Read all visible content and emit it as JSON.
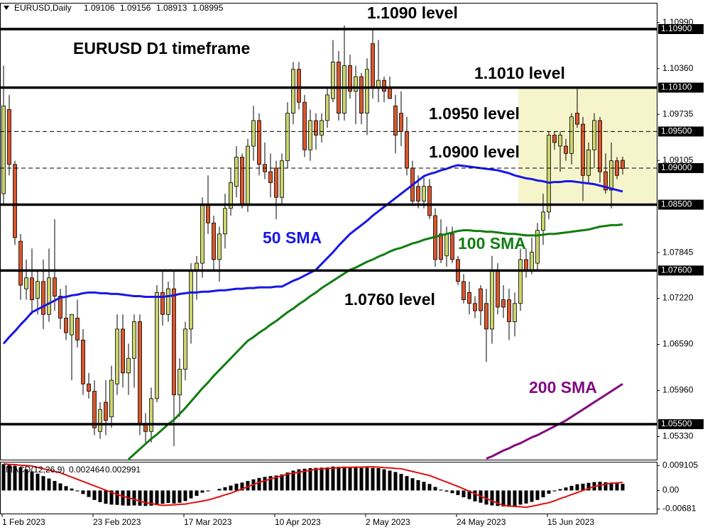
{
  "chart_data": {
    "type": "candlestick",
    "title": "EURUSD,Daily",
    "subtitle": "EURUSD D1 timeframe",
    "categories": [
      "1 Feb 2023",
      null,
      null,
      null,
      null,
      null,
      null,
      null,
      null,
      null,
      null,
      null,
      null,
      null,
      null,
      null,
      "23 Feb 2023",
      null,
      null,
      null,
      null,
      null,
      null,
      null,
      null,
      null,
      null,
      null,
      null,
      null,
      null,
      null,
      "17 Mar 2023",
      null,
      null,
      null,
      null,
      null,
      null,
      null,
      null,
      null,
      null,
      null,
      null,
      null,
      null,
      null,
      "10 Apr 2023",
      null,
      null,
      null,
      null,
      null,
      null,
      null,
      null,
      null,
      null,
      null,
      null,
      null,
      null,
      null,
      "2 May 2023",
      null,
      null,
      null,
      null,
      null,
      null,
      null,
      null,
      null,
      null,
      null,
      null,
      null,
      null,
      null,
      "24 May 2023",
      null,
      null,
      null,
      null,
      null,
      null,
      null,
      null,
      null,
      null,
      null,
      null,
      null,
      null,
      null,
      "15 Jun 2023",
      null,
      null,
      null,
      null,
      null,
      null,
      null,
      null,
      null,
      null,
      null,
      null,
      null
    ],
    "open": [
      1.0865,
      1.098,
      1.0905,
      1.08,
      1.0735,
      1.075,
      1.0722,
      1.0745,
      1.07,
      1.075,
      1.0725,
      1.0695,
      1.0672,
      1.0695,
      1.0665,
      1.0605,
      1.0595,
      1.054,
      1.058,
      1.056,
      1.0605,
      1.068,
      1.062,
      1.064,
      1.069,
      1.055,
      1.054,
      1.0585,
      1.073,
      1.07,
      1.0735,
      1.059,
      1.0625,
      1.068,
      1.076,
      1.077,
      1.085,
      1.0825,
      1.0775,
      1.081,
      1.0845,
      1.0875,
      1.0915,
      1.085,
      1.093,
      1.0965,
      1.0905,
      1.0895,
      1.09,
      1.086,
      1.091,
      1.0975,
      1.1035,
      1.099,
      1.0925,
      1.0965,
      1.0945,
      1.0965,
      1.0995,
      1.1045,
      1.0975,
      1.104,
      1.1005,
      1.1025,
      1.0975,
      1.107,
      1.101,
      1.102,
      1.101,
      1.0985,
      1.0975,
      1.095,
      1.09,
      1.0875,
      1.0855,
      1.0875,
      1.0835,
      1.081,
      1.078,
      1.081,
      1.0775,
      1.0745,
      1.073,
      1.0715,
      1.0735,
      1.0715,
      1.068,
      1.076,
      1.072,
      1.072,
      1.069,
      1.0715,
      1.0775,
      1.076,
      1.077,
      1.0815,
      1.084,
      1.0945,
      1.093,
      1.093,
      1.092,
      1.0975,
      1.096,
      1.089,
      1.0925,
      1.0965,
      1.0895,
      1.087,
      1.091,
      1.09106
    ],
    "high": [
      1.104,
      1.1,
      1.091,
      1.081,
      1.0775,
      1.079,
      1.076,
      1.0775,
      1.079,
      1.083,
      1.0735,
      1.074,
      1.07,
      1.072,
      1.068,
      1.062,
      1.061,
      1.058,
      1.061,
      1.063,
      1.07,
      1.07,
      1.066,
      1.07,
      1.07,
      1.0565,
      1.06,
      1.074,
      1.076,
      1.0745,
      1.076,
      1.064,
      1.069,
      1.077,
      1.078,
      1.086,
      1.089,
      1.0835,
      1.082,
      1.0865,
      1.09,
      1.093,
      1.092,
      1.094,
      1.0985,
      1.0975,
      1.0935,
      1.092,
      1.091,
      1.092,
      1.099,
      1.1045,
      1.1045,
      1.1,
      1.098,
      1.0975,
      1.0975,
      1.101,
      1.1075,
      1.106,
      1.1095,
      1.1055,
      1.104,
      1.103,
      1.105,
      1.109,
      1.1075,
      1.1025,
      1.1025,
      1.1,
      1.1005,
      1.097,
      1.091,
      1.089,
      1.089,
      1.0885,
      1.0845,
      1.083,
      1.082,
      1.082,
      1.078,
      1.0755,
      1.0745,
      1.0725,
      1.074,
      1.0735,
      1.078,
      1.077,
      1.074,
      1.0735,
      1.073,
      1.079,
      1.079,
      1.0805,
      1.0825,
      1.0865,
      1.095,
      1.095,
      1.095,
      1.094,
      1.0975,
      1.101,
      1.097,
      1.0935,
      1.0975,
      1.097,
      1.092,
      1.0935,
      1.0915,
      1.09156
    ],
    "low": [
      1.085,
      1.089,
      1.0795,
      1.072,
      1.072,
      1.07,
      1.07,
      1.068,
      1.069,
      1.0705,
      1.068,
      1.0665,
      1.061,
      1.0655,
      1.059,
      1.0585,
      1.0535,
      1.053,
      1.0535,
      1.0545,
      1.059,
      1.06,
      1.059,
      1.06,
      1.0535,
      1.0525,
      1.0525,
      1.058,
      1.0685,
      1.069,
      1.052,
      1.056,
      1.061,
      1.066,
      1.072,
      1.075,
      1.081,
      1.076,
      1.0745,
      1.079,
      1.0835,
      1.086,
      1.0845,
      1.084,
      1.091,
      1.089,
      1.0885,
      1.086,
      1.083,
      1.085,
      1.09,
      1.096,
      1.098,
      1.0915,
      1.091,
      1.0925,
      1.0935,
      1.0955,
      1.099,
      1.0965,
      1.0965,
      1.0995,
      1.096,
      1.096,
      1.0945,
      1.0995,
      1.099,
      1.099,
      1.0995,
      1.092,
      1.093,
      1.089,
      1.085,
      1.0845,
      1.0845,
      1.083,
      1.0765,
      1.077,
      1.0765,
      1.077,
      1.074,
      1.0715,
      1.07,
      1.0695,
      1.0685,
      1.0635,
      1.066,
      1.07,
      1.0695,
      1.0665,
      1.067,
      1.0705,
      1.075,
      1.0755,
      1.076,
      1.0795,
      1.083,
      1.0925,
      1.0895,
      1.091,
      1.0905,
      1.0955,
      1.0855,
      1.088,
      1.09,
      1.088,
      1.0865,
      1.0845,
      1.0885,
      1.08913
    ],
    "close": [
      1.0985,
      1.0905,
      1.0805,
      1.074,
      1.075,
      1.072,
      1.0745,
      1.07,
      1.075,
      1.0725,
      1.0695,
      1.0675,
      1.07,
      1.0665,
      1.0605,
      1.0595,
      1.0545,
      1.057,
      1.0555,
      1.061,
      1.068,
      1.062,
      1.064,
      1.069,
      1.055,
      1.054,
      1.0585,
      1.073,
      1.07,
      1.0735,
      1.059,
      1.0625,
      1.068,
      1.076,
      1.077,
      1.085,
      1.0825,
      1.0775,
      1.081,
      1.0845,
      1.088,
      1.0915,
      1.085,
      1.093,
      1.0965,
      1.0905,
      1.0895,
      1.088,
      1.086,
      1.091,
      1.0975,
      1.1035,
      1.099,
      1.0925,
      1.0965,
      1.0945,
      1.0965,
      1.1,
      1.1045,
      1.0975,
      1.104,
      1.1005,
      1.1025,
      1.0975,
      1.1035,
      1.101,
      1.102,
      1.1005,
      1.0995,
      1.0945,
      1.095,
      1.09,
      1.0855,
      1.0855,
      1.0875,
      1.0835,
      1.0775,
      1.0775,
      1.081,
      1.0775,
      1.0745,
      1.072,
      1.0715,
      1.0705,
      1.0705,
      1.068,
      1.076,
      1.071,
      1.071,
      1.069,
      1.0715,
      1.0775,
      1.076,
      1.0785,
      1.0815,
      1.084,
      1.0945,
      1.0935,
      1.0945,
      1.092,
      1.097,
      1.096,
      1.089,
      1.0925,
      1.0965,
      1.0895,
      1.087,
      1.091,
      1.089,
      1.08995
    ],
    "up_color": "#cbd56e",
    "down_color": "#d9562c",
    "lines": [
      {
        "name": "50 SMA",
        "color": "#1717e6",
        "values": [
          1.066,
          1.0669,
          1.0677,
          1.0686,
          1.0694,
          1.0703,
          1.0707,
          1.0711,
          1.0715,
          1.0719,
          1.0723,
          1.0724,
          1.0726,
          1.0727,
          1.0729,
          1.073,
          1.073,
          1.0729,
          1.0729,
          1.0728,
          1.0728,
          1.0727,
          1.0726,
          1.0725,
          1.0725,
          1.0724,
          1.0724,
          1.0724,
          1.0724,
          1.0725,
          1.0726,
          1.0728,
          1.0729,
          1.073,
          1.073,
          1.0731,
          1.0731,
          1.0732,
          1.0733,
          1.0733,
          1.0734,
          1.0735,
          1.0735,
          1.0736,
          1.0736,
          1.0737,
          1.0737,
          1.0737,
          1.0738,
          1.0738,
          1.0742,
          1.0746,
          1.0749,
          1.0753,
          1.0757,
          1.0761,
          1.0769,
          1.0777,
          1.0785,
          1.0794,
          1.0802,
          1.081,
          1.0816,
          1.0822,
          1.0828,
          1.0835,
          1.0841,
          1.0847,
          1.0853,
          1.0859,
          1.0865,
          1.0871,
          1.0877,
          1.0883,
          1.0889,
          1.0892,
          1.0894,
          1.0897,
          1.0899,
          1.0902,
          1.0904,
          1.0903,
          1.0902,
          1.0901,
          1.09,
          1.0899,
          1.0898,
          1.0897,
          1.0895,
          1.0893,
          1.089,
          1.0888,
          1.0886,
          1.0885,
          1.0883,
          1.0882,
          1.088,
          1.0881,
          1.0881,
          1.0882,
          1.0882,
          1.0881,
          1.088,
          1.0879,
          1.0878,
          1.0876,
          1.0874,
          1.0872,
          1.087,
          1.0868
        ]
      },
      {
        "name": "100 SMA",
        "color": "#117d11",
        "values": [
          null,
          null,
          null,
          null,
          null,
          null,
          null,
          null,
          null,
          null,
          null,
          null,
          null,
          null,
          null,
          null,
          null,
          null,
          null,
          null,
          null,
          null,
          1.0502,
          1.0509,
          1.0516,
          1.0523,
          1.053,
          1.0536,
          1.0543,
          1.055,
          1.0556,
          1.0564,
          1.0572,
          1.0581,
          1.059,
          1.0599,
          1.0607,
          1.0616,
          1.0624,
          1.0632,
          1.064,
          1.0648,
          1.0656,
          1.0664,
          1.0669,
          1.0675,
          1.068,
          1.0686,
          1.0691,
          1.0697,
          1.0703,
          1.0708,
          1.0714,
          1.0719,
          1.0725,
          1.073,
          1.0736,
          1.0741,
          1.0746,
          1.0751,
          1.0756,
          1.0761,
          1.0764,
          1.0768,
          1.0772,
          1.0775,
          1.0779,
          1.0782,
          1.0786,
          1.0789,
          1.0791,
          1.0794,
          1.0797,
          1.0799,
          1.0802,
          1.0804,
          1.0806,
          1.0808,
          1.081,
          1.0812,
          1.0814,
          1.0815,
          1.0815,
          1.0814,
          1.0814,
          1.0813,
          1.0813,
          1.0812,
          1.0811,
          1.081,
          1.081,
          1.0809,
          1.0808,
          1.0808,
          1.0808,
          1.0809,
          1.081,
          1.081,
          1.0811,
          1.0812,
          1.0813,
          1.0814,
          1.0815,
          1.0816,
          1.0818,
          1.082,
          1.0821,
          1.0822,
          1.0822,
          1.0823
        ]
      },
      {
        "name": "200 SMA",
        "color": "#820a82",
        "values": [
          null,
          null,
          null,
          null,
          null,
          null,
          null,
          null,
          null,
          null,
          null,
          null,
          null,
          null,
          null,
          null,
          null,
          null,
          null,
          null,
          null,
          null,
          null,
          null,
          null,
          null,
          null,
          null,
          null,
          null,
          null,
          null,
          null,
          null,
          null,
          null,
          null,
          null,
          null,
          null,
          null,
          null,
          null,
          null,
          null,
          null,
          null,
          null,
          null,
          null,
          null,
          null,
          null,
          null,
          null,
          null,
          null,
          null,
          null,
          null,
          null,
          null,
          null,
          null,
          null,
          null,
          null,
          null,
          null,
          null,
          null,
          null,
          null,
          null,
          null,
          null,
          null,
          null,
          null,
          null,
          null,
          null,
          null,
          null,
          null,
          1.0503,
          1.0506,
          1.051,
          1.0514,
          1.0517,
          1.0521,
          1.0524,
          1.0528,
          1.0532,
          1.0535,
          1.0539,
          1.0543,
          1.0547,
          1.0551,
          1.0555,
          1.056,
          1.0565,
          1.057,
          1.0575,
          1.058,
          1.0585,
          1.059,
          1.0595,
          1.06,
          1.0605
        ]
      }
    ],
    "levels": [
      {
        "value": 1.109,
        "label": "1.10900",
        "text": "1.1090 level",
        "dashed": false
      },
      {
        "value": 1.101,
        "label": "1.10100",
        "text": "1.1010 level",
        "dashed": false
      },
      {
        "value": 1.095,
        "label": "1.09500",
        "text": "1.0950 level",
        "dashed": true
      },
      {
        "value": 1.09,
        "label": "1.09000",
        "text": "1.0900 level",
        "dashed": true
      },
      {
        "value": 1.085,
        "label": "1.08500",
        "dashed": false
      },
      {
        "value": 1.076,
        "label": "1.07600",
        "text": "1.0760 level",
        "dashed": false
      },
      {
        "value": 1.055,
        "label": "1.05500",
        "dashed": false
      }
    ],
    "ylim": [
      1.05015,
      1.11249
    ],
    "yticks": [
      {
        "value": 1.1099,
        "label": "1.10990"
      },
      {
        "value": 1.1036,
        "label": "1.10360"
      },
      1.09735,
      1.09105,
      1.07845,
      {
        "value": 1.0722,
        "label": "1.07220"
      },
      {
        "value": 1.0659,
        "label": "1.06590"
      },
      {
        "value": 1.0596,
        "label": "1.05960"
      },
      {
        "value": 1.0533,
        "label": "1.05330"
      }
    ],
    "grid": false,
    "macd": {
      "type": "bar",
      "title": "MACD(12,26,9)",
      "color": "#000000",
      "signal_color": "#e01010",
      "values": [
        0.0097,
        0.0095,
        0.0091,
        0.0085,
        0.0078,
        0.007,
        0.0062,
        0.0053,
        0.0044,
        0.0035,
        0.0026,
        0.0016,
        0.0007,
        -0.0003,
        -0.0013,
        -0.0024,
        -0.0035,
        -0.0043,
        -0.0049,
        -0.0052,
        -0.0053,
        -0.0055,
        -0.0056,
        -0.0055,
        -0.0056,
        -0.0057,
        -0.0056,
        -0.0052,
        -0.0049,
        -0.0046,
        -0.0048,
        -0.0045,
        -0.0039,
        -0.0029,
        -0.002,
        -0.0008,
        -0.0003,
        0.0,
        0.0006,
        0.0012,
        0.0018,
        0.0025,
        0.0029,
        0.0035,
        0.0041,
        0.0046,
        0.005,
        0.0053,
        0.0055,
        0.0059,
        0.0066,
        0.0073,
        0.0078,
        0.008,
        0.0082,
        0.0083,
        0.0084,
        0.0085,
        0.0088,
        0.0087,
        0.0088,
        0.0086,
        0.0085,
        0.0083,
        0.0084,
        0.0083,
        0.0082,
        0.0078,
        0.0073,
        0.0068,
        0.0061,
        0.0053,
        0.0045,
        0.0038,
        0.0032,
        0.0024,
        0.0013,
        0.0003,
        -0.0004,
        -0.001,
        -0.0017,
        -0.0025,
        -0.0032,
        -0.004,
        -0.0045,
        -0.0052,
        -0.0055,
        -0.0057,
        -0.0059,
        -0.006,
        -0.0058,
        -0.0052,
        -0.0048,
        -0.0042,
        -0.0035,
        -0.0025,
        -0.0012,
        -0.0003,
        0.0005,
        0.0011,
        0.0017,
        0.0023,
        0.0025,
        0.0028,
        0.0031,
        0.0032,
        0.003,
        0.0029,
        0.0027,
        0.002464
      ],
      "signal": [
        0.0098,
        0.0096,
        0.0095,
        0.0093,
        0.0092,
        0.009,
        0.0085,
        0.008,
        0.0075,
        0.007,
        0.0065,
        0.0057,
        0.0049,
        0.0041,
        0.0033,
        0.0025,
        0.0017,
        0.0009,
        0.0001,
        -0.0007,
        -0.0015,
        -0.0021,
        -0.0027,
        -0.0033,
        -0.0039,
        -0.0045,
        -0.0048,
        -0.0052,
        -0.0055,
        -0.0054,
        -0.0053,
        -0.0051,
        -0.005,
        -0.0046,
        -0.0043,
        -0.0039,
        -0.0035,
        -0.0029,
        -0.0023,
        -0.0016,
        -0.001,
        -0.0002,
        0.0006,
        0.0014,
        0.0022,
        0.003,
        0.0036,
        0.0042,
        0.0048,
        0.0054,
        0.006,
        0.0064,
        0.0067,
        0.0071,
        0.0074,
        0.0078,
        0.0079,
        0.0081,
        0.0082,
        0.0084,
        0.0085,
        0.0085,
        0.0086,
        0.0086,
        0.0087,
        0.0087,
        0.0086,
        0.0084,
        0.0083,
        0.0081,
        0.008,
        0.0075,
        0.007,
        0.0065,
        0.006,
        0.0055,
        0.0047,
        0.0039,
        0.0031,
        0.0023,
        0.0015,
        0.0006,
        -0.0003,
        -0.0012,
        -0.0021,
        -0.003,
        -0.0038,
        -0.0047,
        -0.0055,
        -0.0057,
        -0.0059,
        -0.006,
        -0.0062,
        -0.0058,
        -0.0054,
        -0.0049,
        -0.0045,
        -0.0038,
        -0.003,
        -0.0023,
        -0.0015,
        -0.0008,
        0.0,
        0.0007,
        0.0015,
        0.0019,
        0.0023,
        0.0027,
        0.0028,
        0.002991
      ],
      "ylim": [
        -0.0085,
        0.0103
      ],
      "yticks": [
        0.009105,
        {
          "value": 0,
          "label": "0.00"
        },
        -0.00681
      ]
    }
  }
}
